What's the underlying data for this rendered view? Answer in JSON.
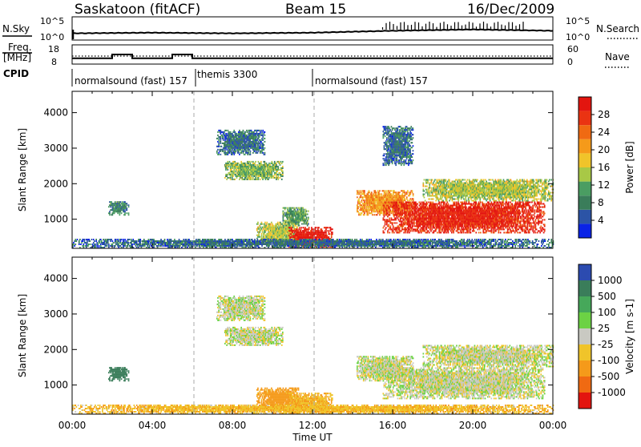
{
  "header": {
    "station": "Saskatoon (fitACF)",
    "beam": "Beam 15",
    "date": "16/Dec/2009"
  },
  "strip_panels": {
    "nsky_label": "N.Sky",
    "nsky_ticks": [
      "10^5",
      "10^0"
    ],
    "nsearch_label": "N.Search",
    "nsearch_ticks": [
      "10^5",
      "10^0"
    ],
    "freq_label_1": "Freq.",
    "freq_label_2": "[MHz]",
    "freq_ticks": [
      "18",
      "8"
    ],
    "nave_label": "Nave",
    "nave_ticks": [
      "60",
      "0"
    ],
    "cpid_label": "CPID",
    "cpid_segments": [
      {
        "name": "normalsound (fast) 157"
      },
      {
        "name": "themis 3300"
      },
      {
        "name": "normalsound (fast) 157"
      }
    ]
  },
  "axes": {
    "ylabel": "Slant Range [km]",
    "xlabel": "Time UT",
    "yticks": [
      "1000",
      "2000",
      "3000",
      "4000"
    ],
    "xticks": [
      "00:00",
      "04:00",
      "08:00",
      "12:00",
      "16:00",
      "20:00",
      "00:00"
    ]
  },
  "colorbars": {
    "power": {
      "label": "Power [dB]",
      "ticks": [
        "4",
        "8",
        "12",
        "16",
        "20",
        "24",
        "28"
      ],
      "colors": [
        "#0a23e6",
        "#2c54a6",
        "#3a7d5a",
        "#4a9d62",
        "#a8c846",
        "#f0c42a",
        "#f59a1a",
        "#f06a12",
        "#ea3312",
        "#e3150f"
      ]
    },
    "velocity": {
      "label": "Velocity [m s-1]",
      "ticks": [
        "1000",
        "500",
        "100",
        "25",
        "-25",
        "-100",
        "-500",
        "-1000"
      ],
      "colors": [
        "#2c4bb0",
        "#3a7d5a",
        "#46a85a",
        "#6cd244",
        "#c9c9c2",
        "#f0c42a",
        "#f59a1a",
        "#f06a12",
        "#e3150f"
      ]
    }
  },
  "chart_data": [
    {
      "type": "line",
      "title": "N.Sky / N.Search",
      "x": [
        "00:00",
        "04:00",
        "08:00",
        "12:00",
        "16:00",
        "20:00",
        "24:00"
      ],
      "series": [
        {
          "name": "N.Sky",
          "values": [
            0.4,
            0.45,
            0.4,
            0.45,
            0.6,
            0.7,
            0.6
          ]
        },
        {
          "name": "N.Search",
          "values": [
            0.4,
            0.4,
            0.4,
            0.45,
            0.55,
            0.6,
            0.55
          ]
        }
      ]
    },
    {
      "type": "line",
      "title": "Freq. [MHz] / Nave",
      "x": [
        "00:00",
        "01:00",
        "02:00",
        "03:00",
        "04:00",
        "05:00",
        "06:00",
        "24:00"
      ],
      "series": [
        {
          "name": "Freq. [MHz]",
          "values": [
            11,
            11,
            13,
            11,
            11,
            13,
            11,
            11
          ]
        },
        {
          "name": "Nave",
          "values": [
            25,
            25,
            25,
            25,
            25,
            25,
            25,
            25
          ]
        }
      ]
    },
    {
      "type": "heatmap",
      "title": "Power [dB]",
      "xlabel": "Time UT",
      "ylabel": "Slant Range [km]",
      "xlim": [
        0,
        24
      ],
      "ylim": [
        180,
        4600
      ],
      "colorbar_range": [
        0,
        30
      ],
      "regions": [
        {
          "t": [
            1.8,
            2.8
          ],
          "r": [
            1100,
            1500
          ],
          "value": 8
        },
        {
          "t": [
            7.6,
            10.5
          ],
          "r": [
            2100,
            2600
          ],
          "value": 12
        },
        {
          "t": [
            7.2,
            9.6
          ],
          "r": [
            2800,
            3500
          ],
          "value": 6
        },
        {
          "t": [
            9.2,
            11.3
          ],
          "r": [
            300,
            900
          ],
          "value": 14
        },
        {
          "t": [
            10.8,
            13.0
          ],
          "r": [
            200,
            750
          ],
          "value": 28
        },
        {
          "t": [
            10.5,
            11.8
          ],
          "r": [
            800,
            1300
          ],
          "value": 10
        },
        {
          "t": [
            14.2,
            17.0
          ],
          "r": [
            1100,
            1800
          ],
          "value": 20
        },
        {
          "t": [
            15.5,
            23.6
          ],
          "r": [
            600,
            1500
          ],
          "value": 27
        },
        {
          "t": [
            17.5,
            24.0
          ],
          "r": [
            1500,
            2100
          ],
          "value": 14
        },
        {
          "t": [
            15.5,
            17.0
          ],
          "r": [
            2500,
            3600
          ],
          "value": 6
        },
        {
          "t": [
            0.0,
            24.0
          ],
          "r": [
            180,
            420
          ],
          "value": 6
        }
      ]
    },
    {
      "type": "heatmap",
      "title": "Velocity [m s-1]",
      "xlabel": "Time UT",
      "ylabel": "Slant Range [km]",
      "xlim": [
        0,
        24
      ],
      "ylim": [
        180,
        4600
      ],
      "colorbar_range": [
        -1000,
        1000
      ],
      "regions": [
        {
          "t": [
            1.8,
            2.8
          ],
          "r": [
            1100,
            1500
          ],
          "value": 600
        },
        {
          "t": [
            7.6,
            10.5
          ],
          "r": [
            2100,
            2600
          ],
          "value": 0
        },
        {
          "t": [
            7.2,
            9.6
          ],
          "r": [
            2800,
            3500
          ],
          "value": 0
        },
        {
          "t": [
            9.2,
            11.3
          ],
          "r": [
            300,
            900
          ],
          "value": -150
        },
        {
          "t": [
            10.8,
            13.0
          ],
          "r": [
            200,
            750
          ],
          "value": -100
        },
        {
          "t": [
            14.2,
            17.0
          ],
          "r": [
            1100,
            1800
          ],
          "value": 0
        },
        {
          "t": [
            15.5,
            23.6
          ],
          "r": [
            600,
            1500
          ],
          "value": 0
        },
        {
          "t": [
            17.5,
            24.0
          ],
          "r": [
            1500,
            2100
          ],
          "value": 0
        },
        {
          "t": [
            0.0,
            24.0
          ],
          "r": [
            180,
            420
          ],
          "value": -80
        }
      ]
    }
  ]
}
